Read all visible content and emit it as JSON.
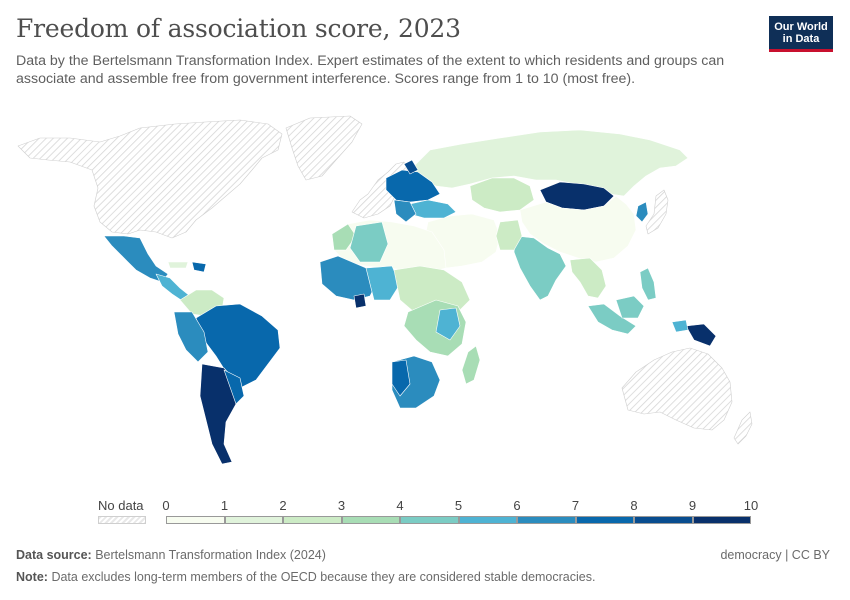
{
  "header": {
    "title": "Freedom of association score, 2023",
    "subtitle": "Data by the Bertelsmann Transformation Index. Expert estimates of the extent to which residents and groups can associate and assemble free from government interference. Scores range from 1 to 10 (most free)."
  },
  "logo": {
    "line1": "Our World",
    "line2": "in Data"
  },
  "legend": {
    "no_data_label": "No data",
    "ticks": [
      "0",
      "1",
      "2",
      "3",
      "4",
      "5",
      "6",
      "7",
      "8",
      "9",
      "10"
    ],
    "bins": [
      {
        "from": 0,
        "to": 1,
        "color": "#f7fcf0"
      },
      {
        "from": 1,
        "to": 2,
        "color": "#e0f3db"
      },
      {
        "from": 2,
        "to": 3,
        "color": "#ccebc5"
      },
      {
        "from": 3,
        "to": 4,
        "color": "#a8ddb5"
      },
      {
        "from": 4,
        "to": 5,
        "color": "#7bccc4"
      },
      {
        "from": 5,
        "to": 6,
        "color": "#4eb3d3"
      },
      {
        "from": 6,
        "to": 7,
        "color": "#2b8cbe"
      },
      {
        "from": 7,
        "to": 8,
        "color": "#0868ac"
      },
      {
        "from": 8,
        "to": 9,
        "color": "#084d8f"
      },
      {
        "from": 9,
        "to": 10,
        "color": "#08306b"
      }
    ]
  },
  "colors": {
    "no_data": "#e8e8e8",
    "ocean": "#ffffff",
    "border": "#ffffff"
  },
  "footer": {
    "source_label": "Data source:",
    "source_text": "Bertelsmann Transformation Index (2024)",
    "note_label": "Note:",
    "note_text": "Data excludes long-term members of the OECD because they are considered stable democracies.",
    "right_text": "democracy | CC BY"
  }
}
